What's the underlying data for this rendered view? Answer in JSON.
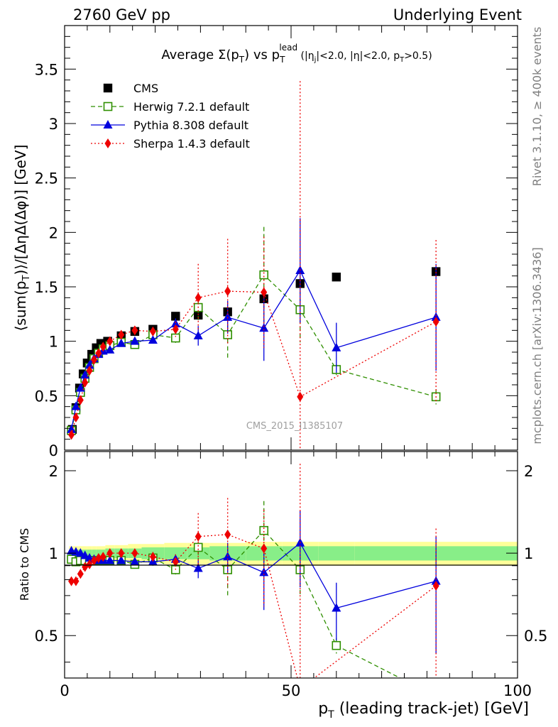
{
  "header": {
    "left": "2760 GeV pp",
    "right": "Underlying Event",
    "rivet": "Rivet 3.1.10, ≥ 400k events",
    "mcplots": "mcplots.cern.ch [arXiv:1306.3436]",
    "watermark": "CMS_2015_I1385107"
  },
  "chart_data": [
    {
      "type": "scatter",
      "panel": "main",
      "title": "Average Σ(p_T) vs p_T^lead (|η_j|<2.0, |η|<2.0, p_T>0.5)",
      "xlabel": "p_T (leading track-jet) [GeV]",
      "ylabel": "⟨sum(p_T)⟩/[ΔηΔ(Δφ)] [GeV]",
      "xlim": [
        0,
        100
      ],
      "ylim": [
        0,
        3.9
      ],
      "yticks": [
        "0",
        "0.5",
        "1",
        "1.5",
        "2",
        "2.5",
        "3",
        "3.5"
      ],
      "xticks": [
        "0",
        "50",
        "100"
      ],
      "legend_position": "top-left",
      "series": [
        {
          "name": "CMS",
          "color": "#000000",
          "marker": "filled-square",
          "line": "none",
          "x": [
            1.7,
            2.5,
            3.3,
            4.1,
            5.0,
            6.0,
            7.0,
            8.0,
            9.5,
            12.5,
            15.5,
            19.5,
            24.5,
            29.5,
            36.0,
            44.0,
            52.0,
            60.0,
            82.0
          ],
          "y": [
            0.19,
            0.39,
            0.57,
            0.7,
            0.8,
            0.88,
            0.94,
            0.98,
            1.0,
            1.05,
            1.09,
            1.11,
            1.23,
            1.24,
            1.27,
            1.39,
            1.53,
            1.59,
            1.64
          ]
        },
        {
          "name": "Herwig 7.2.1 default",
          "color": "#2f8f00",
          "marker": "open-square",
          "line": "dashed",
          "x": [
            1.5,
            2.5,
            3.5,
            4.5,
            5.5,
            6.5,
            7.5,
            8.5,
            10.0,
            12.5,
            15.5,
            19.5,
            24.5,
            29.5,
            36.0,
            44.0,
            52.0,
            60.0,
            82.0
          ],
          "y": [
            0.18,
            0.37,
            0.53,
            0.66,
            0.76,
            0.84,
            0.89,
            0.93,
            0.96,
            0.99,
            0.97,
            1.06,
            1.03,
            1.31,
            1.06,
            1.61,
            1.29,
            0.74,
            0.49
          ],
          "err": [
            0.02,
            0.02,
            0.02,
            0.02,
            0.02,
            0.02,
            0.02,
            0.02,
            0.02,
            0.02,
            0.02,
            0.04,
            0.06,
            0.12,
            0.22,
            0.44,
            0.3,
            0.05,
            0.07
          ]
        },
        {
          "name": "Pythia 8.308 default",
          "color": "#0000dd",
          "marker": "filled-triangle",
          "line": "solid",
          "x": [
            1.5,
            2.5,
            3.5,
            4.5,
            5.5,
            6.5,
            7.5,
            8.5,
            10.0,
            12.5,
            15.5,
            19.5,
            24.5,
            29.5,
            36.0,
            44.0,
            52.0,
            60.0,
            82.0
          ],
          "y": [
            0.19,
            0.4,
            0.57,
            0.69,
            0.78,
            0.84,
            0.88,
            0.91,
            0.92,
            0.98,
            1.0,
            1.01,
            1.16,
            1.05,
            1.22,
            1.12,
            1.65,
            0.94,
            1.22
          ],
          "err": [
            0.01,
            0.01,
            0.01,
            0.01,
            0.01,
            0.01,
            0.01,
            0.01,
            0.02,
            0.02,
            0.02,
            0.03,
            0.05,
            0.09,
            0.15,
            0.3,
            0.48,
            0.23,
            0.49
          ]
        },
        {
          "name": "Sherpa 1.4.3 default",
          "color": "#ee0000",
          "marker": "filled-diamond",
          "line": "dotted",
          "x": [
            1.5,
            2.5,
            3.5,
            4.5,
            5.5,
            6.5,
            7.5,
            8.5,
            10.0,
            12.5,
            15.5,
            19.5,
            24.5,
            29.5,
            36.0,
            44.0,
            52.0,
            82.0
          ],
          "y": [
            0.14,
            0.3,
            0.46,
            0.62,
            0.73,
            0.83,
            0.89,
            0.95,
            1.0,
            1.06,
            1.1,
            1.09,
            1.11,
            1.4,
            1.46,
            1.45,
            0.49,
            1.18
          ],
          "err": [
            0.01,
            0.01,
            0.01,
            0.01,
            0.01,
            0.01,
            0.01,
            0.01,
            0.02,
            0.02,
            0.03,
            0.04,
            0.07,
            0.31,
            0.48,
            0.51,
            2.9,
            0.75
          ]
        }
      ]
    },
    {
      "type": "scatter",
      "panel": "ratio",
      "xlabel": "p_T (leading track-jet) [GeV]",
      "ylabel": "Ratio to CMS",
      "xlim": [
        0,
        100
      ],
      "ylim": [
        0.35,
        2.35
      ],
      "yticks": [
        "0.5",
        "1",
        "2"
      ],
      "reference_line": 1.0,
      "uncertainty_band": {
        "x_edges": [
          1,
          2,
          3,
          4,
          5,
          6,
          7,
          8,
          9,
          11,
          14,
          17,
          22,
          27,
          32,
          40,
          48,
          56,
          64,
          100
        ],
        "stat_half_width": [
          0.03,
          0.03,
          0.03,
          0.03,
          0.03,
          0.03,
          0.03,
          0.03,
          0.04,
          0.04,
          0.04,
          0.05,
          0.05,
          0.05,
          0.06,
          0.06,
          0.06,
          0.06,
          0.06
        ],
        "total_half_width": [
          0.06,
          0.06,
          0.06,
          0.06,
          0.06,
          0.06,
          0.06,
          0.06,
          0.07,
          0.07,
          0.08,
          0.08,
          0.09,
          0.09,
          0.09,
          0.1,
          0.1,
          0.1,
          0.1
        ],
        "stat_color": "#88ee88",
        "total_color": "#ffff99"
      },
      "series": [
        {
          "name": "Herwig 7.2.1 default",
          "color": "#2f8f00",
          "x": [
            1.5,
            2.5,
            3.5,
            4.5,
            5.5,
            6.5,
            7.5,
            8.5,
            10.0,
            12.5,
            15.5,
            19.5,
            24.5,
            29.5,
            36.0,
            44.0,
            52.0,
            60.0,
            82.0
          ],
          "y": [
            0.95,
            0.93,
            0.94,
            0.94,
            0.94,
            0.94,
            0.94,
            0.94,
            0.94,
            0.94,
            0.91,
            0.96,
            0.87,
            1.05,
            0.87,
            1.21,
            0.87,
            0.46,
            0.3
          ],
          "err": [
            0.02,
            0.02,
            0.02,
            0.02,
            0.02,
            0.02,
            0.02,
            0.02,
            0.02,
            0.02,
            0.02,
            0.03,
            0.05,
            0.1,
            0.17,
            0.34,
            0.18,
            0.03,
            0.04
          ]
        },
        {
          "name": "Pythia 8.308 default",
          "color": "#0000dd",
          "x": [
            1.5,
            2.5,
            3.5,
            4.5,
            5.5,
            6.5,
            7.5,
            8.5,
            10.0,
            12.5,
            15.5,
            19.5,
            24.5,
            29.5,
            36.0,
            44.0,
            52.0,
            60.0,
            82.0
          ],
          "y": [
            1.02,
            1.01,
            1.0,
            0.98,
            0.96,
            0.95,
            0.94,
            0.94,
            0.94,
            0.94,
            0.93,
            0.93,
            0.95,
            0.88,
            0.97,
            0.85,
            1.09,
            0.63,
            0.79
          ],
          "err": [
            0.01,
            0.01,
            0.01,
            0.01,
            0.01,
            0.01,
            0.01,
            0.01,
            0.02,
            0.02,
            0.02,
            0.03,
            0.04,
            0.07,
            0.12,
            0.23,
            0.34,
            0.15,
            0.36
          ]
        },
        {
          "name": "Sherpa 1.4.3 default",
          "color": "#ee0000",
          "x": [
            1.5,
            2.5,
            3.5,
            4.5,
            5.5,
            6.5,
            7.5,
            8.5,
            10.0,
            12.5,
            15.5,
            19.5,
            24.5,
            29.5,
            36.0,
            44.0,
            52.0,
            82.0
          ],
          "y": [
            0.79,
            0.79,
            0.84,
            0.89,
            0.91,
            0.94,
            0.96,
            0.97,
            1.0,
            1.0,
            1.0,
            0.97,
            0.93,
            1.15,
            1.17,
            1.04,
            0.32,
            0.76
          ],
          "err": [
            0.01,
            0.01,
            0.01,
            0.01,
            0.01,
            0.01,
            0.01,
            0.01,
            0.02,
            0.02,
            0.03,
            0.04,
            0.06,
            0.25,
            0.42,
            0.4,
            1.8,
            0.47
          ]
        }
      ]
    }
  ]
}
